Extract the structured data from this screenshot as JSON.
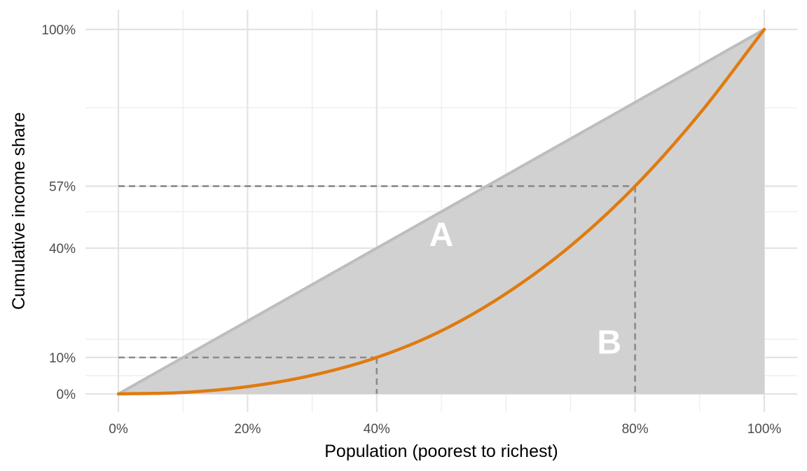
{
  "chart_data": {
    "type": "line",
    "xlabel": "Population (poorest to richest)",
    "ylabel": "Cumulative income share",
    "xlim": [
      0,
      100
    ],
    "ylim": [
      0,
      100
    ],
    "x_ticks": [
      0,
      20,
      40,
      80,
      100
    ],
    "x_tick_labels": [
      "0%",
      "20%",
      "40%",
      "80%",
      "100%"
    ],
    "x_minor_grid": [
      10,
      30,
      50,
      60,
      70,
      90
    ],
    "y_ticks": [
      0,
      10,
      40,
      57,
      100
    ],
    "y_tick_labels": [
      "0%",
      "10%",
      "40%",
      "57%",
      "100%"
    ],
    "y_minor_grid": [
      5,
      15,
      50,
      78.5
    ],
    "grid": true,
    "series": [
      {
        "role": "equality-line",
        "x": [
          0,
          100
        ],
        "y": [
          0,
          100
        ],
        "color": "#bdbdbd"
      },
      {
        "role": "lorenz-curve",
        "x": [
          0,
          10,
          20,
          30,
          40,
          50,
          60,
          70,
          80,
          90,
          100
        ],
        "y": [
          0,
          0.4,
          2.0,
          5.1,
          10,
          17.3,
          27.5,
          40.6,
          57,
          76.9,
          100
        ],
        "color": "#e07b10"
      }
    ],
    "shaded_area_color": "#cfcfcf",
    "reference_points": [
      {
        "x": 40,
        "y": 10
      },
      {
        "x": 80,
        "y": 57
      }
    ],
    "annotations": [
      {
        "text": "A",
        "x": 50,
        "y": 43
      },
      {
        "text": "B",
        "x": 76,
        "y": 13.5
      }
    ]
  }
}
